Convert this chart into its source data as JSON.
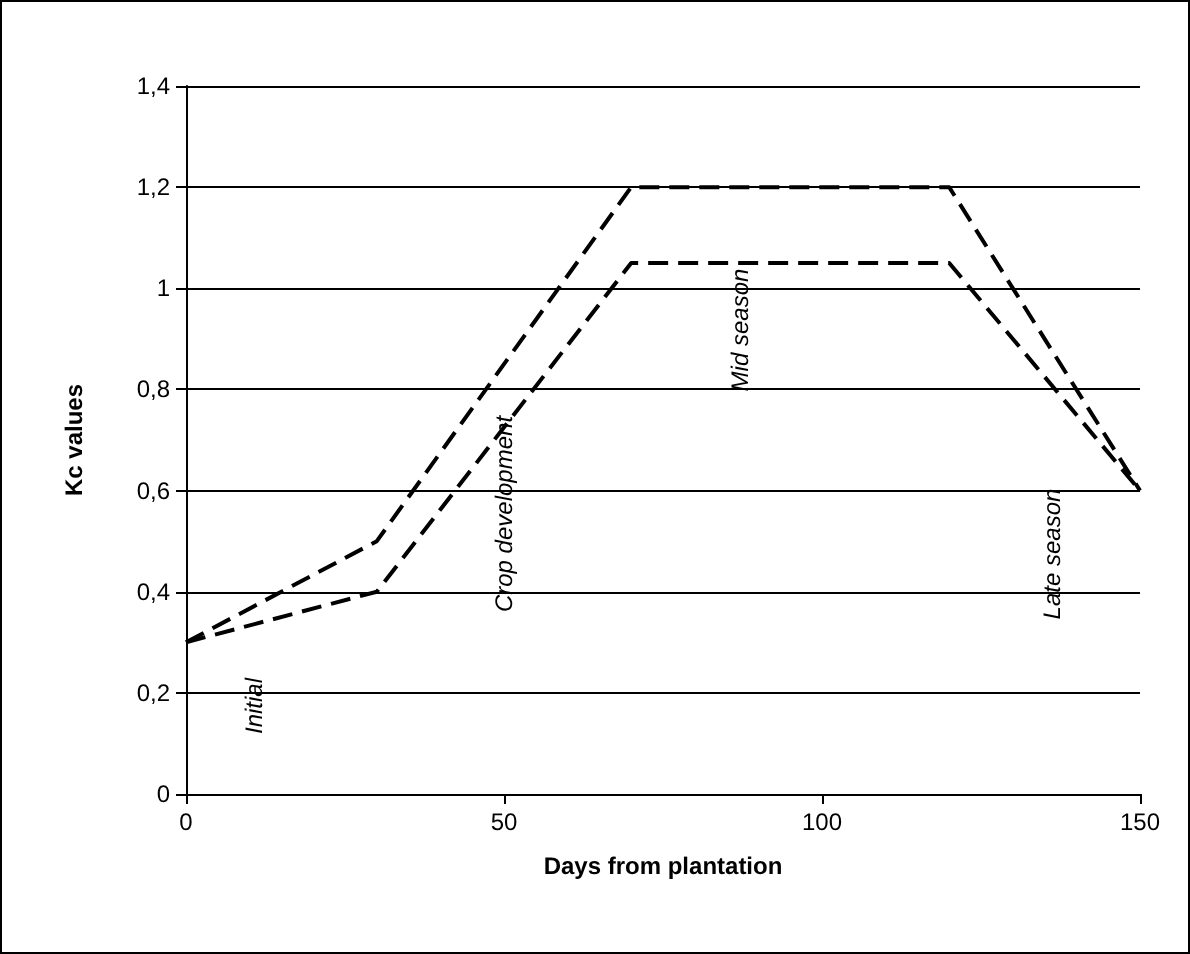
{
  "chart_data": {
    "type": "line",
    "xlabel": "Days from plantation",
    "ylabel": "Kc values",
    "series": [
      {
        "color": "#000000",
        "x": [
          0,
          30,
          70,
          120,
          150
        ],
        "values": [
          0.3,
          0.5,
          1.2,
          1.2,
          0.6
        ]
      },
      {
        "color": "#000000",
        "x": [
          0,
          30,
          70,
          120,
          150
        ],
        "values": [
          0.3,
          0.4,
          1.05,
          1.05,
          0.6
        ]
      }
    ],
    "xlim": [
      0,
      150
    ],
    "xticks": [
      0,
      50,
      100,
      150
    ],
    "ylim": [
      0,
      1.4
    ],
    "yticks": [
      0,
      {
        "value": 0.2,
        "label": "0,2"
      },
      {
        "value": 0.4,
        "label": "0,4"
      },
      {
        "value": 0.6,
        "label": "0,6"
      },
      {
        "value": 0.8,
        "label": "0,8"
      },
      1,
      {
        "value": 1.2,
        "label": "1,2"
      },
      {
        "value": 1.4,
        "label": "1,4"
      }
    ],
    "grid": "y",
    "marker": "none",
    "line_style": "dashed",
    "annotations": [
      "Initial",
      "Crop development",
      "Mid season",
      "Late season"
    ]
  }
}
